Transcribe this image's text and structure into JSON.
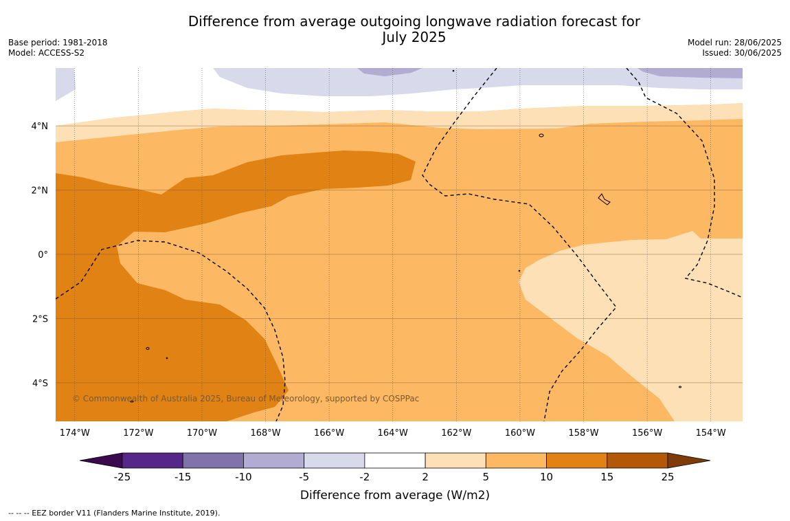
{
  "title": {
    "line1": "Difference from average outgoing longwave radiation forecast for",
    "line2": "July 2025"
  },
  "meta_left": {
    "base_period": "Base period: 1981-2018",
    "model": "Model: ACCESS-S2"
  },
  "meta_right": {
    "model_run": "Model run: 28/06/2025",
    "issued": "Issued: 30/06/2025"
  },
  "map": {
    "lon_range": [
      -174.6,
      -153.0
    ],
    "lat_range": [
      -5.2,
      5.8
    ],
    "lon_ticks": [
      "174°W",
      "172°W",
      "170°W",
      "168°W",
      "166°W",
      "164°W",
      "162°W",
      "160°W",
      "158°W",
      "156°W",
      "154°W"
    ],
    "lat_ticks": [
      "4°N",
      "2°N",
      "0°",
      "2°S",
      "4°S"
    ],
    "copyright": "© Commonwealth of Australia 2025, Bureau of Meteorology, supported by COSPPac"
  },
  "colorbar": {
    "title": "Difference from average (W/m2)",
    "tick_labels": [
      "-25",
      "-15",
      "-10",
      "-5",
      "-2",
      "2",
      "5",
      "10",
      "15",
      "25"
    ],
    "colors": [
      "#3b0a4e",
      "#542788",
      "#8073ac",
      "#b2abd2",
      "#d8daeb",
      "#ffffff",
      "#fee0b6",
      "#fdb863",
      "#e08214",
      "#b35806",
      "#7f3b08"
    ]
  },
  "footnote": "--  --  -- EEZ border V11 (Flanders Marine Institute, 2019)."
}
